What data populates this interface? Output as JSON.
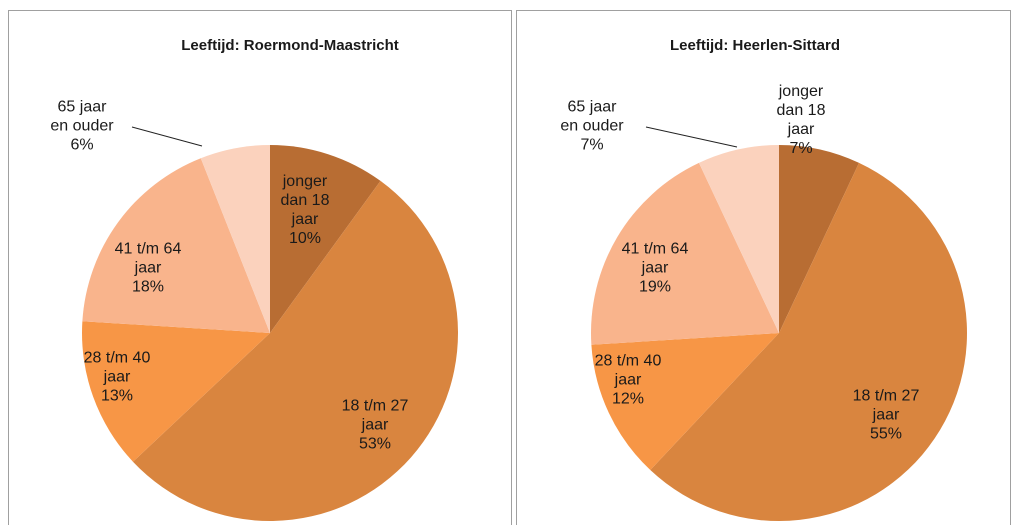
{
  "chart_data": [
    {
      "type": "pie",
      "title": "Leeftijd: Roermond-Maastricht",
      "categories": [
        "jonger\ndan 18\njaar",
        "18 t/m 27\njaar",
        "28 t/m 40\njaar",
        "41 t/m 64\njaar",
        "65 jaar\nen ouder"
      ],
      "values": [
        10,
        53,
        13,
        18,
        6
      ],
      "value_labels": [
        "10%",
        "53%",
        "13%",
        "18%",
        "6%"
      ],
      "colors": [
        "#b86d33",
        "#d9853f",
        "#f79646",
        "#f9b48c",
        "#fbd2bd"
      ]
    },
    {
      "type": "pie",
      "title": "Leeftijd: Heerlen-Sittard",
      "categories": [
        "jonger\ndan 18\njaar",
        "18 t/m 27\njaar",
        "28 t/m 40\njaar",
        "41 t/m 64\njaar",
        "65 jaar\nen ouder"
      ],
      "values": [
        7,
        55,
        12,
        19,
        7
      ],
      "value_labels": [
        "7%",
        "55%",
        "12%",
        "19%",
        "7%"
      ],
      "colors": [
        "#b86d33",
        "#d9853f",
        "#f79646",
        "#f9b48c",
        "#fbd2bd"
      ]
    }
  ]
}
